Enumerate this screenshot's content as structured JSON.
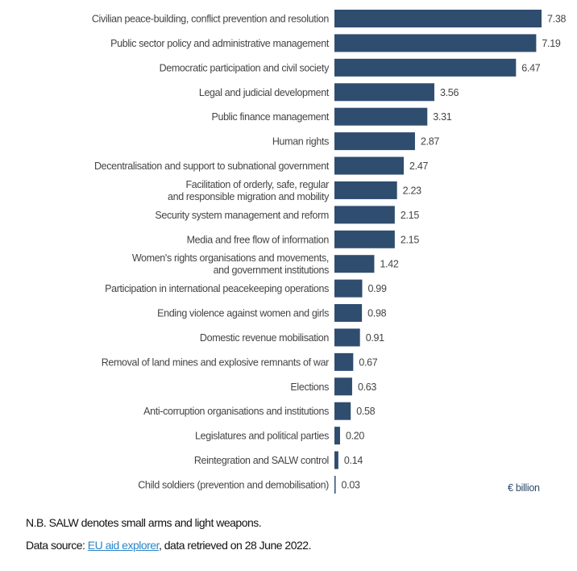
{
  "chart_data": {
    "type": "bar",
    "orientation": "horizontal",
    "categories": [
      [
        "Civilian peace-building, conflict prevention and resolution"
      ],
      [
        "Public sector policy and administrative management"
      ],
      [
        "Democratic participation and civil society"
      ],
      [
        "Legal and judicial development"
      ],
      [
        "Public finance management"
      ],
      [
        "Human rights"
      ],
      [
        "Decentralisation and support to subnational government"
      ],
      [
        "Facilitation of orderly, safe, regular",
        "and responsible migration and mobility"
      ],
      [
        "Security system management and reform"
      ],
      [
        "Media and free flow of information"
      ],
      [
        "Women's rights organisations and movements,",
        "and government institutions"
      ],
      [
        "Participation in international peacekeeping operations"
      ],
      [
        "Ending violence against women and girls"
      ],
      [
        "Domestic revenue mobilisation"
      ],
      [
        "Removal of land mines and explosive remnants of war"
      ],
      [
        "Elections"
      ],
      [
        "Anti-corruption organisations and institutions"
      ],
      [
        "Legislatures and political parties"
      ],
      [
        "Reintegration and SALW control"
      ],
      [
        "Child soldiers (prevention and demobilisation)"
      ]
    ],
    "values": [
      7.38,
      7.19,
      6.47,
      3.56,
      3.31,
      2.87,
      2.47,
      2.23,
      2.15,
      2.15,
      1.42,
      0.99,
      0.98,
      0.91,
      0.67,
      0.63,
      0.58,
      0.2,
      0.14,
      0.03
    ],
    "value_labels": [
      "7.38",
      "7.19",
      "6.47",
      "3.56",
      "3.31",
      "2.87",
      "2.47",
      "2.23",
      "2.15",
      "2.15",
      "1.42",
      "0.99",
      "0.98",
      "0.91",
      "0.67",
      "0.63",
      "0.58",
      "0.20",
      "0.14",
      "0.03"
    ],
    "unit": "€ billion",
    "xlim": [
      0,
      7.38
    ],
    "grid": false,
    "bar_color": "#2f4d6f"
  },
  "notes": {
    "nb": "N.B. SALW denotes small arms and light weapons.",
    "source_prefix": "Data source: ",
    "source_link": "EU aid explorer",
    "source_suffix": ", data retrieved on 28 June 2022."
  }
}
